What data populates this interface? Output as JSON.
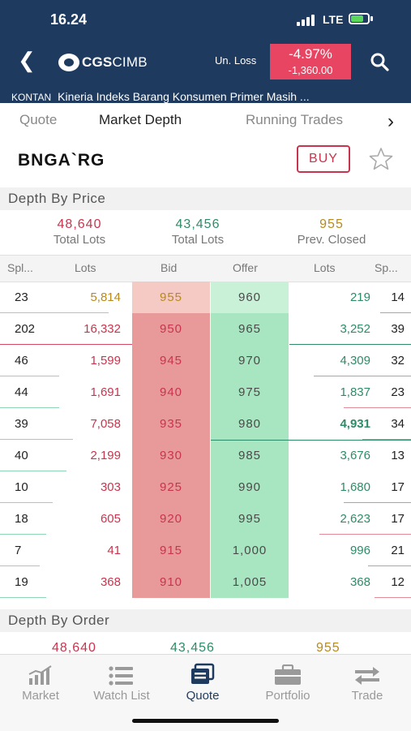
{
  "status_bar": {
    "time": "16.24",
    "network": "LTE"
  },
  "header": {
    "logo_brand": "CGS",
    "logo_suffix": "CIMB",
    "unloss_label": "Un. Loss",
    "unloss_percent": "-4.97%",
    "unloss_value": "-1,360.00",
    "unloss_color": "#e84562",
    "bg_color": "#1e3a5f"
  },
  "ticker": {
    "source": "KONTAN",
    "headline": "Kineria Indeks Barang Konsumen Primer Masih ..."
  },
  "tabs": [
    {
      "label": "Quote",
      "active": false
    },
    {
      "label": "Market Depth",
      "active": true
    },
    {
      "label": "Running Trades",
      "active": false
    }
  ],
  "symbol": {
    "code": "BNGA`RG",
    "buy_label": "BUY"
  },
  "depth_by_price": {
    "title": "Depth By Price",
    "summary": [
      {
        "value": "48,640",
        "label": "Total Lots",
        "color": "#c8344e"
      },
      {
        "value": "43,456",
        "label": "Total Lots",
        "color": "#2e8b68"
      },
      {
        "value": "955",
        "label": "Prev. Closed",
        "color": "#b88a1c"
      }
    ],
    "columns": {
      "bid_split": "Spl...",
      "bid_lots": "Lots",
      "bid": "Bid",
      "offer": "Offer",
      "offer_lots": "Lots",
      "offer_split": "Sp..."
    },
    "rows": [
      {
        "bid_split": "23",
        "bid_lots": "5,814",
        "bid": "955",
        "offer": "960",
        "offer_lots": "219",
        "offer_split": "14",
        "bid_color": "#b88a1c",
        "bid_bar": 0.82,
        "offer_bar": 0.25
      },
      {
        "bid_split": "202",
        "bid_lots": "16,332",
        "bid": "950",
        "offer": "965",
        "offer_lots": "3,252",
        "offer_split": "39",
        "bid_color": "#c8344e",
        "bid_bar": 1.0,
        "offer_bar": 1.0
      },
      {
        "bid_split": "46",
        "bid_lots": "1,599",
        "bid": "945",
        "offer": "970",
        "offer_lots": "4,309",
        "offer_split": "32",
        "bid_color": "#c8344e",
        "bid_bar": 0.45,
        "offer_bar": 0.8
      },
      {
        "bid_split": "44",
        "bid_lots": "1,691",
        "bid": "940",
        "offer": "975",
        "offer_lots": "1,837",
        "offer_split": "23",
        "bid_color": "#c8344e",
        "bid_bar": 0.45,
        "offer_bar": 0.55
      },
      {
        "bid_split": "39",
        "bid_lots": "7,058",
        "bid": "935",
        "offer": "980",
        "offer_lots": "4,931",
        "offer_split": "34",
        "bid_color": "#c8344e",
        "bid_bar": 0.55,
        "offer_bar": 0.4
      },
      {
        "bid_split": "40",
        "bid_lots": "2,199",
        "bid": "930",
        "offer": "985",
        "offer_lots": "3,676",
        "offer_split": "13",
        "bid_color": "#c8344e",
        "bid_bar": 0.5,
        "offer_bar": 1.0
      },
      {
        "bid_split": "10",
        "bid_lots": "303",
        "bid": "925",
        "offer": "990",
        "offer_lots": "1,680",
        "offer_split": "17",
        "bid_color": "#c8344e",
        "bid_bar": 0.4,
        "offer_bar": 0.55
      },
      {
        "bid_split": "18",
        "bid_lots": "605",
        "bid": "920",
        "offer": "995",
        "offer_lots": "2,623",
        "offer_split": "17",
        "bid_color": "#c8344e",
        "bid_bar": 0.35,
        "offer_bar": 0.75
      },
      {
        "bid_split": "7",
        "bid_lots": "41",
        "bid": "915",
        "offer": "1,000",
        "offer_lots": "996",
        "offer_split": "21",
        "bid_color": "#c8344e",
        "bid_bar": 0.3,
        "offer_bar": 0.35
      },
      {
        "bid_split": "19",
        "bid_lots": "368",
        "bid": "910",
        "offer": "1,005",
        "offer_lots": "368",
        "offer_split": "12",
        "bid_color": "#c8344e",
        "bid_bar": 0.35,
        "offer_bar": 0.3
      }
    ]
  },
  "depth_by_order": {
    "title": "Depth By Order",
    "summary": [
      {
        "value": "48,640",
        "color": "#c8344e"
      },
      {
        "value": "43,456",
        "color": "#2e8b68"
      },
      {
        "value": "955",
        "color": "#b88a1c"
      }
    ]
  },
  "bottom_nav": [
    {
      "label": "Market",
      "icon": "market-chart-icon",
      "active": false
    },
    {
      "label": "Watch List",
      "icon": "watchlist-icon",
      "active": false
    },
    {
      "label": "Quote",
      "icon": "quote-icon",
      "active": true
    },
    {
      "label": "Portfolio",
      "icon": "portfolio-briefcase-icon",
      "active": false
    },
    {
      "label": "Trade",
      "icon": "trade-arrows-icon",
      "active": false
    }
  ],
  "colors": {
    "bid_bg": "#e89a9a",
    "bid_bg_top": "#f5c9c4",
    "offer_bg": "#a8e6c1",
    "offer_bg_top": "#c8f1d8",
    "nav_active": "#1e3a5f",
    "bid_text": "#c8344e",
    "offer_lots_text": "#2e8b68"
  }
}
